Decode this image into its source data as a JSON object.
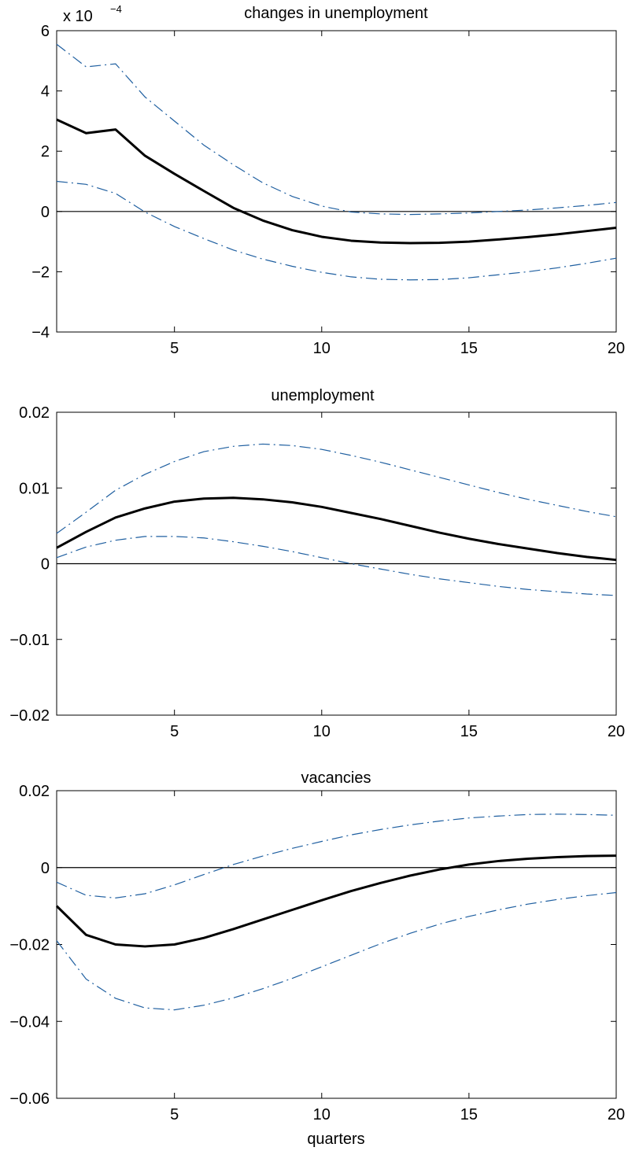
{
  "chart_data": [
    {
      "type": "line",
      "title": "changes in unemployment",
      "ylabel_multiplier": "x 10",
      "ylabel_exponent": "−4",
      "xlabel": "",
      "xlim": [
        1,
        20
      ],
      "ylim": [
        -4,
        6
      ],
      "yticks": [
        -4,
        -2,
        0,
        2,
        4,
        6
      ],
      "ytick_labels": [
        "−4",
        "−2",
        "0",
        "2",
        "4",
        "6"
      ],
      "xticks": [
        5,
        10,
        15,
        20
      ],
      "xtick_labels": [
        "5",
        "10",
        "15",
        "20"
      ],
      "zero_line": true,
      "x": [
        1,
        2,
        3,
        4,
        5,
        6,
        7,
        8,
        9,
        10,
        11,
        12,
        13,
        14,
        15,
        16,
        17,
        18,
        19,
        20
      ],
      "series": [
        {
          "role": "irf",
          "values": [
            3.05,
            2.6,
            2.72,
            1.85,
            1.25,
            0.68,
            0.12,
            -0.3,
            -0.62,
            -0.84,
            -0.97,
            -1.03,
            -1.05,
            -1.04,
            -1.0,
            -0.93,
            -0.85,
            -0.76,
            -0.65,
            -0.54
          ]
        },
        {
          "role": "upper",
          "values": [
            5.55,
            4.8,
            4.9,
            3.8,
            3.0,
            2.2,
            1.55,
            0.95,
            0.5,
            0.18,
            -0.02,
            -0.08,
            -0.1,
            -0.08,
            -0.05,
            0.0,
            0.05,
            0.12,
            0.2,
            0.3
          ]
        },
        {
          "role": "lower",
          "values": [
            1.0,
            0.9,
            0.6,
            -0.02,
            -0.5,
            -0.9,
            -1.28,
            -1.58,
            -1.82,
            -2.02,
            -2.17,
            -2.25,
            -2.27,
            -2.26,
            -2.2,
            -2.1,
            -2.0,
            -1.87,
            -1.72,
            -1.55
          ]
        }
      ]
    },
    {
      "type": "line",
      "title": "unemployment",
      "xlabel": "",
      "xlim": [
        1,
        20
      ],
      "ylim": [
        -0.02,
        0.02
      ],
      "yticks": [
        -0.02,
        -0.01,
        0,
        0.01,
        0.02
      ],
      "ytick_labels": [
        "−0.02",
        "−0.01",
        "0",
        "0.01",
        "0.02"
      ],
      "xticks": [
        5,
        10,
        15,
        20
      ],
      "xtick_labels": [
        "5",
        "10",
        "15",
        "20"
      ],
      "zero_line": true,
      "x": [
        1,
        2,
        3,
        4,
        5,
        6,
        7,
        8,
        9,
        10,
        11,
        12,
        13,
        14,
        15,
        16,
        17,
        18,
        19,
        20
      ],
      "series": [
        {
          "role": "irf",
          "values": [
            0.0021,
            0.0042,
            0.0061,
            0.0073,
            0.0082,
            0.0086,
            0.0087,
            0.0085,
            0.0081,
            0.0075,
            0.0067,
            0.0059,
            0.005,
            0.0041,
            0.0033,
            0.0026,
            0.002,
            0.0014,
            0.0009,
            0.0005
          ]
        },
        {
          "role": "upper",
          "values": [
            0.004,
            0.0068,
            0.0097,
            0.0118,
            0.0135,
            0.0148,
            0.0155,
            0.0158,
            0.0156,
            0.0151,
            0.0143,
            0.0134,
            0.0124,
            0.0114,
            0.0104,
            0.0094,
            0.0085,
            0.0077,
            0.0069,
            0.0062
          ]
        },
        {
          "role": "lower",
          "values": [
            0.0008,
            0.0022,
            0.0031,
            0.0036,
            0.0036,
            0.0034,
            0.0029,
            0.0023,
            0.0016,
            0.0008,
            0.0,
            -0.0007,
            -0.0014,
            -0.002,
            -0.0025,
            -0.003,
            -0.0034,
            -0.0037,
            -0.004,
            -0.0042
          ]
        }
      ]
    },
    {
      "type": "line",
      "title": "vacancies",
      "xlabel": "quarters",
      "xlim": [
        1,
        20
      ],
      "ylim": [
        -0.06,
        0.02
      ],
      "yticks": [
        -0.06,
        -0.04,
        -0.02,
        0,
        0.02
      ],
      "ytick_labels": [
        "−0.06",
        "−0.04",
        "−0.02",
        "0",
        "0.02"
      ],
      "xticks": [
        5,
        10,
        15,
        20
      ],
      "xtick_labels": [
        "5",
        "10",
        "15",
        "20"
      ],
      "zero_line": true,
      "x": [
        1,
        2,
        3,
        4,
        5,
        6,
        7,
        8,
        9,
        10,
        11,
        12,
        13,
        14,
        15,
        16,
        17,
        18,
        19,
        20
      ],
      "series": [
        {
          "role": "irf",
          "values": [
            -0.01,
            -0.0175,
            -0.02,
            -0.0205,
            -0.02,
            -0.0183,
            -0.016,
            -0.0135,
            -0.011,
            -0.0085,
            -0.0061,
            -0.004,
            -0.0021,
            -0.0005,
            0.0008,
            0.0017,
            0.0023,
            0.0027,
            0.003,
            0.0031
          ]
        },
        {
          "role": "upper",
          "values": [
            -0.0038,
            -0.0072,
            -0.0079,
            -0.0068,
            -0.0045,
            -0.0018,
            0.0008,
            0.003,
            0.005,
            0.0068,
            0.0085,
            0.0099,
            0.0111,
            0.0121,
            0.0129,
            0.0134,
            0.0138,
            0.0139,
            0.0138,
            0.0136
          ]
        },
        {
          "role": "lower",
          "values": [
            -0.019,
            -0.029,
            -0.034,
            -0.0365,
            -0.037,
            -0.0358,
            -0.0339,
            -0.0315,
            -0.0288,
            -0.0258,
            -0.0228,
            -0.0198,
            -0.0171,
            -0.0147,
            -0.0127,
            -0.011,
            -0.0095,
            -0.0083,
            -0.0073,
            -0.0065
          ]
        }
      ]
    }
  ]
}
